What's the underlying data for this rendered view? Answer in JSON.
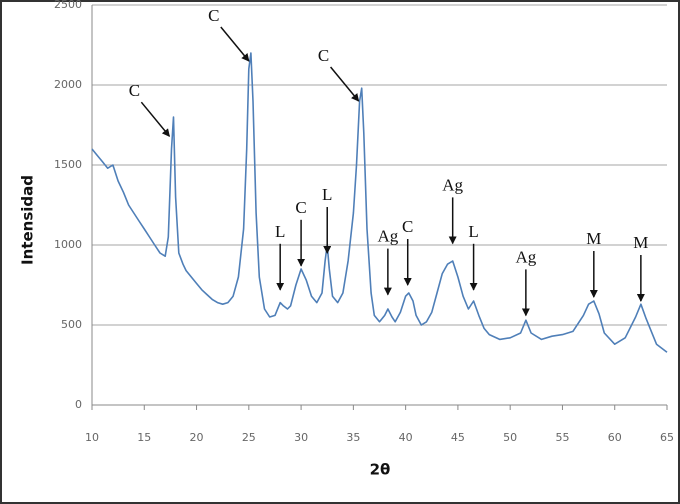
{
  "chart_data": {
    "type": "line",
    "x_label": "2θ",
    "y_label": "Intensidad",
    "x": [
      10,
      10.5,
      11,
      11.5,
      12,
      12.5,
      13,
      13.5,
      14,
      14.5,
      15,
      15.5,
      16,
      16.5,
      17,
      17.3,
      17.6,
      17.8,
      18,
      18.3,
      18.7,
      19,
      19.5,
      20,
      20.5,
      21,
      21.5,
      22,
      22.5,
      23,
      23.5,
      24,
      24.5,
      24.8,
      25,
      25.2,
      25.4,
      25.7,
      26,
      26.5,
      27,
      27.5,
      28,
      28.3,
      28.7,
      29,
      29.5,
      30,
      30.5,
      31,
      31.5,
      32,
      32.3,
      32.5,
      32.7,
      33,
      33.5,
      34,
      34.5,
      35,
      35.3,
      35.6,
      35.8,
      36,
      36.3,
      36.7,
      37,
      37.5,
      38,
      38.3,
      38.7,
      39,
      39.5,
      40,
      40.3,
      40.7,
      41,
      41.5,
      42,
      42.5,
      43,
      43.5,
      44,
      44.5,
      45,
      45.5,
      46,
      46.5,
      47,
      47.5,
      48,
      49,
      50,
      51,
      51.5,
      52,
      53,
      54,
      55,
      56,
      57,
      57.5,
      58,
      58.5,
      59,
      60,
      61,
      62,
      62.5,
      63,
      64,
      65
    ],
    "values": [
      1600,
      1560,
      1520,
      1480,
      1500,
      1400,
      1330,
      1250,
      1200,
      1150,
      1100,
      1050,
      1000,
      950,
      930,
      1050,
      1600,
      1800,
      1300,
      950,
      880,
      840,
      800,
      760,
      720,
      690,
      660,
      640,
      630,
      640,
      680,
      800,
      1100,
      1600,
      2100,
      2200,
      1900,
      1200,
      800,
      600,
      550,
      560,
      640,
      620,
      600,
      620,
      750,
      850,
      780,
      680,
      640,
      700,
      900,
      1000,
      850,
      680,
      640,
      700,
      900,
      1200,
      1500,
      1900,
      1980,
      1700,
      1100,
      700,
      560,
      520,
      560,
      600,
      550,
      520,
      580,
      680,
      700,
      650,
      560,
      500,
      520,
      580,
      700,
      820,
      880,
      900,
      800,
      680,
      600,
      650,
      560,
      480,
      440,
      410,
      420,
      450,
      530,
      450,
      410,
      430,
      440,
      460,
      560,
      630,
      650,
      570,
      450,
      380,
      420,
      550,
      630,
      540,
      380,
      330
    ],
    "color": "#4f7fb8",
    "xlim": [
      10,
      65
    ],
    "xticks": [
      10,
      15,
      20,
      25,
      30,
      35,
      40,
      45,
      50,
      55,
      60,
      65
    ],
    "ylim": [
      0,
      2500
    ],
    "yticks": [
      0,
      500,
      1000,
      1500,
      2000,
      2500
    ],
    "grid": true,
    "annotations": [
      {
        "text": "C",
        "x": 17.4,
        "y": 1680
      },
      {
        "text": "C",
        "x": 25,
        "y": 2150
      },
      {
        "text": "C",
        "x": 35.5,
        "y": 1900
      },
      {
        "text": "L",
        "x": 28,
        "y": 720
      },
      {
        "text": "C",
        "x": 30,
        "y": 870
      },
      {
        "text": "L",
        "x": 32.5,
        "y": 950
      },
      {
        "text": "Ag",
        "x": 38.3,
        "y": 690
      },
      {
        "text": "C",
        "x": 40.2,
        "y": 750
      },
      {
        "text": "Ag",
        "x": 44.5,
        "y": 1010
      },
      {
        "text": "L",
        "x": 46.5,
        "y": 720
      },
      {
        "text": "Ag",
        "x": 51.5,
        "y": 560
      },
      {
        "text": "M",
        "x": 58,
        "y": 675
      },
      {
        "text": "M",
        "x": 62.5,
        "y": 650
      }
    ]
  }
}
